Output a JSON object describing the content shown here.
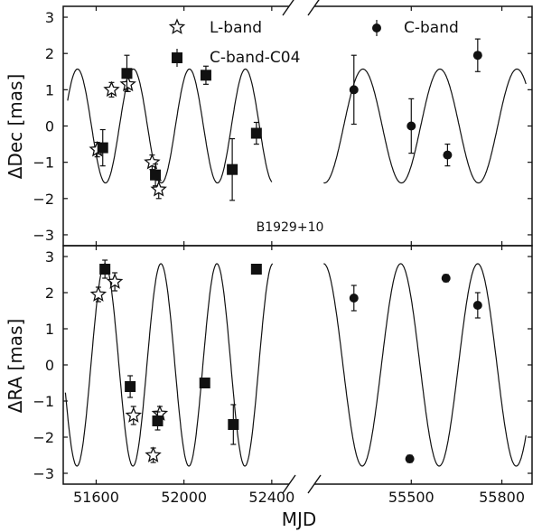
{
  "chart_data": {
    "type": "scatter",
    "source_label": "B1929+10",
    "xlabel": "MJD",
    "x_ticks_left": [
      "51600",
      "52000",
      "52400"
    ],
    "x_ticks_right": [
      "55500",
      "55800"
    ],
    "x_tick_values_left": [
      51600,
      52000,
      52400
    ],
    "x_tick_values_right": [
      55500,
      55800
    ],
    "xlim_left": [
      51450,
      52450
    ],
    "xlim_right": [
      55200,
      55900
    ],
    "legend": {
      "l_band": "L-band",
      "c_band_c04": "C-band-C04",
      "c_band": "C-band"
    },
    "panels": [
      {
        "id": "dec",
        "ylabel": "ΔDec [mas]",
        "ylim": [
          -3.3,
          3.3
        ],
        "y_ticks": [
          "3",
          "2",
          "1",
          "0",
          "−1",
          "−2",
          "−3"
        ],
        "y_tick_values": [
          3,
          2,
          1,
          0,
          -1,
          -2,
          -3
        ],
        "series": [
          {
            "name": "L-band",
            "marker": "star",
            "x": [
              51605,
              51670,
              51745,
              51855,
              51885
            ],
            "y": [
              -0.65,
              1.0,
              1.15,
              -1.0,
              -1.75
            ],
            "err": [
              0.2,
              0.2,
              0.2,
              0.2,
              0.25
            ]
          },
          {
            "name": "C-band-C04",
            "marker": "square",
            "x": [
              51630,
              51740,
              51870,
              52100,
              52220,
              52330
            ],
            "y": [
              -0.6,
              1.45,
              -1.35,
              1.4,
              -1.2,
              -0.2
            ],
            "err": [
              0.5,
              0.5,
              0.3,
              0.25,
              0.85,
              0.3
            ]
          },
          {
            "name": "C-band",
            "marker": "circle",
            "x": [
              55310,
              55500,
              55620,
              55720
            ],
            "y": [
              1.0,
              0.0,
              -0.8,
              1.95
            ],
            "err": [
              0.95,
              0.75,
              0.3,
              0.45
            ]
          }
        ]
      },
      {
        "id": "ra",
        "ylabel": "ΔRA [mas]",
        "ylim": [
          -3.3,
          3.3
        ],
        "y_ticks": [
          "3",
          "2",
          "1",
          "0",
          "−1",
          "−2",
          "−3"
        ],
        "y_tick_values": [
          3,
          2,
          1,
          0,
          -1,
          -2,
          -3
        ],
        "series": [
          {
            "name": "L-band",
            "marker": "star",
            "x": [
              51610,
              51685,
              51770,
              51860,
              51890
            ],
            "y": [
              1.95,
              2.3,
              -1.4,
              -2.5,
              -1.35
            ],
            "err": [
              0.2,
              0.25,
              0.25,
              0.2,
              0.2
            ]
          },
          {
            "name": "C-band-C04",
            "marker": "square",
            "x": [
              51640,
              51755,
              51880,
              52095,
              52225,
              52330
            ],
            "y": [
              2.65,
              -0.6,
              -1.55,
              -0.5,
              -1.65,
              2.65
            ],
            "err": [
              0.25,
              0.3,
              0.25,
              0.1,
              0.55,
              0.1
            ]
          },
          {
            "name": "C-band",
            "marker": "circle",
            "x": [
              55310,
              55495,
              55615,
              55720
            ],
            "y": [
              1.85,
              -2.6,
              2.4,
              1.65
            ],
            "err": [
              0.35,
              0.1,
              0.1,
              0.35
            ]
          }
        ]
      }
    ]
  }
}
